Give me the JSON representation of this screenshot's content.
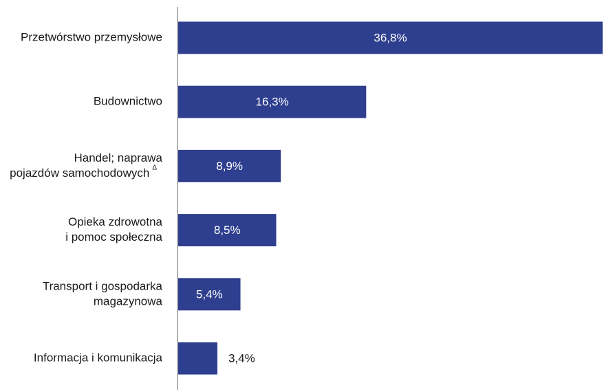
{
  "chart_data": {
    "type": "bar",
    "orientation": "horizontal",
    "categories": [
      [
        "Przetwórstwo przemysłowe"
      ],
      [
        "Budownictwo"
      ],
      [
        "Handel; naprawa",
        "pojazdów samochodowych"
      ],
      [
        "Opieka zdrowotna",
        "i pomoc społeczna"
      ],
      [
        "Transport i gospodarka",
        "magazynowa"
      ],
      [
        "Informacja i komunikacja"
      ]
    ],
    "category_superscripts": [
      "",
      "",
      "Δ",
      "",
      "",
      ""
    ],
    "values": [
      36.8,
      16.3,
      8.9,
      8.5,
      5.4,
      3.4
    ],
    "value_labels": [
      "36,8%",
      "16,3%",
      "8,9%",
      "8,5%",
      "5,4%",
      "3,4%"
    ],
    "xlim": [
      0,
      36.8
    ],
    "grid": false,
    "legend": "none",
    "colors": {
      "bar": "#2e3f8f",
      "axis": "#666666",
      "label_inside": "#ffffff",
      "label_outside": "#1a1a1a"
    }
  }
}
